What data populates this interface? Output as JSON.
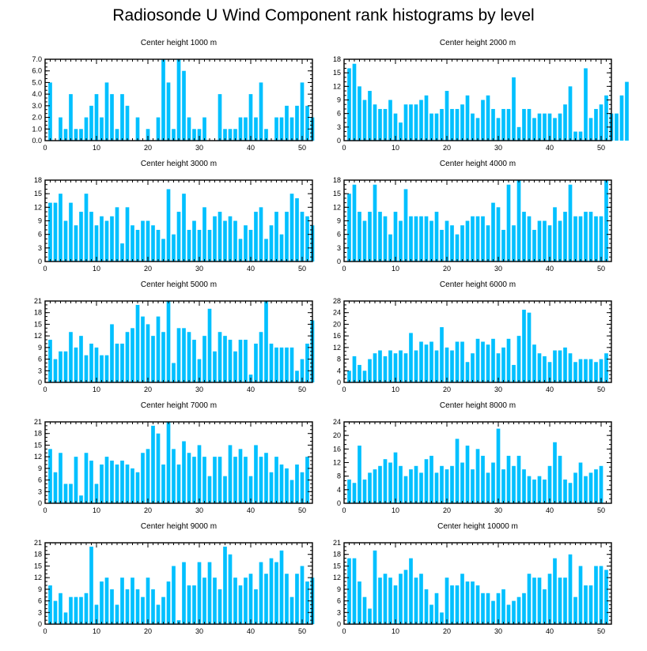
{
  "title": "Radiosonde U Wind Component rank histograms by level",
  "colors": {
    "bar": "#00c0ff",
    "axis": "#000000",
    "background": "#ffffff"
  },
  "chart_data": [
    {
      "type": "bar",
      "title": "Center height 1000 m",
      "xlim": [
        0,
        52
      ],
      "ylim": [
        0,
        7
      ],
      "xticks": [
        0,
        10,
        20,
        30,
        40,
        50
      ],
      "yticks": [
        0,
        1,
        2,
        3,
        4,
        5,
        6,
        7
      ],
      "ytick_labels": [
        "0.0",
        "1.0",
        "2.0",
        "3.0",
        "4.0",
        "5.0",
        "6.0",
        "7.0"
      ],
      "values": [
        5,
        0,
        2,
        1,
        4,
        1,
        1,
        2,
        3,
        4,
        2,
        5,
        4,
        1,
        4,
        3,
        0,
        2,
        0,
        1,
        0,
        2,
        7,
        5,
        1,
        7,
        6,
        2,
        1,
        1,
        2,
        0,
        0,
        4,
        1,
        1,
        1,
        2,
        2,
        4,
        2,
        5,
        1,
        0,
        2,
        2,
        3,
        2,
        3,
        5,
        3,
        2
      ]
    },
    {
      "type": "bar",
      "title": "Center height 2000 m",
      "xlim": [
        0,
        52
      ],
      "ylim": [
        0,
        18
      ],
      "xticks": [
        0,
        10,
        20,
        30,
        40,
        50
      ],
      "yticks": [
        0,
        3,
        6,
        9,
        12,
        15,
        18
      ],
      "ytick_labels": [
        "0",
        "3",
        "6",
        "9",
        "12",
        "15",
        "18"
      ],
      "values": [
        16,
        17,
        12,
        9,
        11,
        8,
        7,
        7,
        9,
        6,
        4,
        8,
        8,
        8,
        9,
        10,
        6,
        6,
        7,
        11,
        7,
        7,
        8,
        10,
        6,
        5,
        9,
        10,
        7,
        5,
        7,
        7,
        14,
        3,
        7,
        7,
        5,
        6,
        6,
        6,
        5,
        6,
        8,
        12,
        2,
        2,
        16,
        5,
        7,
        8,
        10,
        6,
        6,
        10,
        13
      ]
    },
    {
      "type": "bar",
      "title": "Center height 3000 m",
      "xlim": [
        0,
        52
      ],
      "ylim": [
        0,
        18
      ],
      "xticks": [
        0,
        10,
        20,
        30,
        40,
        50
      ],
      "yticks": [
        0,
        3,
        6,
        9,
        12,
        15,
        18
      ],
      "ytick_labels": [
        "0",
        "3",
        "6",
        "9",
        "12",
        "15",
        "18"
      ],
      "values": [
        13,
        13,
        15,
        9,
        13,
        8,
        11,
        15,
        11,
        8,
        10,
        9,
        10,
        12,
        4,
        12,
        8,
        7,
        9,
        9,
        8,
        7,
        5,
        16,
        6,
        11,
        15,
        7,
        9,
        7,
        12,
        7,
        10,
        11,
        9,
        10,
        9,
        5,
        8,
        7,
        11,
        12,
        5,
        8,
        11,
        6,
        11,
        15,
        14,
        11,
        10,
        8
      ]
    },
    {
      "type": "bar",
      "title": "Center height 4000 m",
      "xlim": [
        0,
        52
      ],
      "ylim": [
        0,
        18
      ],
      "xticks": [
        0,
        10,
        20,
        30,
        40,
        50
      ],
      "yticks": [
        0,
        3,
        6,
        9,
        12,
        15,
        18
      ],
      "ytick_labels": [
        "0",
        "3",
        "6",
        "9",
        "12",
        "15",
        "18"
      ],
      "values": [
        15,
        17,
        11,
        9,
        11,
        17,
        11,
        10,
        6,
        11,
        9,
        16,
        10,
        10,
        10,
        10,
        9,
        11,
        7,
        9,
        8,
        6,
        8,
        9,
        10,
        10,
        10,
        8,
        13,
        12,
        7,
        17,
        8,
        18,
        11,
        10,
        7,
        9,
        9,
        8,
        12,
        9,
        11,
        17,
        10,
        10,
        11,
        11,
        10,
        10,
        18
      ]
    },
    {
      "type": "bar",
      "title": "Center height 5000 m",
      "xlim": [
        0,
        52
      ],
      "ylim": [
        0,
        21
      ],
      "xticks": [
        0,
        10,
        20,
        30,
        40,
        50
      ],
      "yticks": [
        0,
        3,
        6,
        9,
        12,
        15,
        18,
        21
      ],
      "ytick_labels": [
        "0",
        "3",
        "6",
        "9",
        "12",
        "15",
        "18",
        "21"
      ],
      "values": [
        11,
        6,
        8,
        8,
        13,
        9,
        12,
        7,
        10,
        9,
        7,
        7,
        15,
        10,
        10,
        13,
        14,
        20,
        17,
        15,
        12,
        17,
        13,
        21,
        5,
        14,
        14,
        13,
        11,
        6,
        12,
        19,
        8,
        13,
        12,
        11,
        8,
        11,
        11,
        2,
        10,
        13,
        21,
        10,
        9,
        9,
        9,
        9,
        3,
        6,
        10,
        16
      ]
    },
    {
      "type": "bar",
      "title": "Center height 6000 m",
      "xlim": [
        0,
        52
      ],
      "ylim": [
        0,
        28
      ],
      "xticks": [
        0,
        10,
        20,
        30,
        40,
        50
      ],
      "yticks": [
        0,
        4,
        8,
        12,
        16,
        20,
        24,
        28
      ],
      "ytick_labels": [
        "0",
        "4",
        "8",
        "12",
        "16",
        "20",
        "24",
        "28"
      ],
      "values": [
        4,
        9,
        6,
        4,
        8,
        10,
        11,
        9,
        11,
        10,
        11,
        10,
        17,
        11,
        14,
        13,
        14,
        11,
        19,
        12,
        11,
        14,
        14,
        7,
        10,
        15,
        14,
        13,
        15,
        10,
        12,
        15,
        6,
        16,
        25,
        24,
        13,
        10,
        9,
        7,
        11,
        11,
        12,
        10,
        7,
        8,
        8,
        8,
        7,
        8,
        10
      ]
    },
    {
      "type": "bar",
      "title": "Center height 7000 m",
      "xlim": [
        0,
        52
      ],
      "ylim": [
        0,
        21
      ],
      "xticks": [
        0,
        10,
        20,
        30,
        40,
        50
      ],
      "yticks": [
        0,
        3,
        6,
        9,
        12,
        15,
        18,
        21
      ],
      "ytick_labels": [
        "0",
        "3",
        "6",
        "9",
        "12",
        "15",
        "18",
        "21"
      ],
      "values": [
        14,
        8,
        13,
        5,
        5,
        12,
        2,
        13,
        11,
        5,
        10,
        12,
        11,
        10,
        11,
        10,
        9,
        8,
        13,
        14,
        20,
        18,
        10,
        21,
        14,
        10,
        16,
        13,
        12,
        15,
        12,
        7,
        12,
        12,
        7,
        15,
        12,
        14,
        12,
        7,
        15,
        12,
        13,
        8,
        12,
        10,
        9,
        6,
        10,
        8,
        12
      ]
    },
    {
      "type": "bar",
      "title": "Center height 8000 m",
      "xlim": [
        0,
        52
      ],
      "ylim": [
        0,
        24
      ],
      "xticks": [
        0,
        10,
        20,
        30,
        40,
        50
      ],
      "yticks": [
        0,
        4,
        8,
        12,
        16,
        20,
        24
      ],
      "ytick_labels": [
        "0",
        "4",
        "8",
        "12",
        "16",
        "20",
        "24"
      ],
      "values": [
        7,
        6,
        17,
        7,
        9,
        10,
        11,
        13,
        12,
        15,
        11,
        8,
        10,
        11,
        9,
        13,
        14,
        9,
        11,
        10,
        11,
        19,
        12,
        17,
        10,
        16,
        14,
        9,
        12,
        22,
        10,
        14,
        11,
        14,
        10,
        8,
        7,
        8,
        7,
        11,
        18,
        14,
        7,
        6,
        9,
        12,
        8,
        9,
        10,
        11
      ]
    },
    {
      "type": "bar",
      "title": "Center height 9000 m",
      "xlim": [
        0,
        52
      ],
      "ylim": [
        0,
        21
      ],
      "xticks": [
        0,
        10,
        20,
        30,
        40,
        50
      ],
      "yticks": [
        0,
        3,
        6,
        9,
        12,
        15,
        18,
        21
      ],
      "ytick_labels": [
        "0",
        "3",
        "6",
        "9",
        "12",
        "15",
        "18",
        "21"
      ],
      "values": [
        10,
        6,
        8,
        3,
        7,
        7,
        7,
        8,
        20,
        5,
        11,
        12,
        9,
        5,
        12,
        9,
        12,
        9,
        7,
        12,
        9,
        5,
        7,
        11,
        15,
        1,
        16,
        10,
        10,
        16,
        12,
        16,
        12,
        9,
        20,
        18,
        12,
        10,
        12,
        13,
        9,
        16,
        13,
        17,
        16,
        19,
        13,
        7,
        13,
        15,
        11,
        12
      ]
    },
    {
      "type": "bar",
      "title": "Center height 10000 m",
      "xlim": [
        0,
        52
      ],
      "ylim": [
        0,
        21
      ],
      "xticks": [
        0,
        10,
        20,
        30,
        40,
        50
      ],
      "yticks": [
        0,
        3,
        6,
        9,
        12,
        15,
        18,
        21
      ],
      "ytick_labels": [
        "0",
        "3",
        "6",
        "9",
        "12",
        "15",
        "18",
        "21"
      ],
      "values": [
        17,
        17,
        11,
        7,
        4,
        19,
        12,
        13,
        12,
        10,
        13,
        14,
        17,
        12,
        13,
        9,
        5,
        8,
        3,
        12,
        10,
        10,
        13,
        11,
        11,
        10,
        8,
        8,
        6,
        8,
        9,
        5,
        6,
        7,
        8,
        13,
        12,
        12,
        9,
        13,
        17,
        12,
        12,
        18,
        7,
        15,
        10,
        10,
        15,
        15,
        14
      ]
    }
  ]
}
